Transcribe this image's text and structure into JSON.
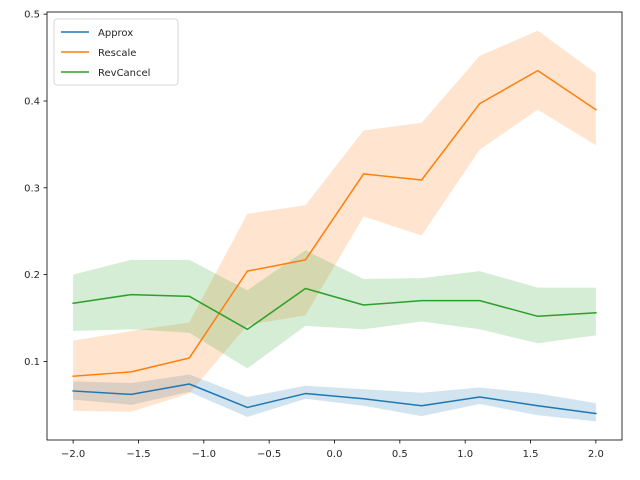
{
  "chart_data": {
    "type": "line",
    "x": [
      -2.0,
      -1.5556,
      -1.1111,
      -0.6667,
      -0.2222,
      0.2222,
      0.6667,
      1.1111,
      1.5556,
      2.0
    ],
    "xlim": [
      -2.2,
      2.2
    ],
    "ylim": [
      0.0095,
      0.5025
    ],
    "xticks": [
      -2.0,
      -1.5,
      -1.0,
      -0.5,
      0.0,
      0.5,
      1.0,
      1.5,
      2.0
    ],
    "xtick_labels": [
      "−2.0",
      "−1.5",
      "−1.0",
      "−0.5",
      "0.0",
      "0.5",
      "1.0",
      "1.5",
      "2.0"
    ],
    "yticks": [
      0.1,
      0.2,
      0.3,
      0.4,
      0.5
    ],
    "ytick_labels": [
      "0.1",
      "0.2",
      "0.3",
      "0.4",
      "0.5"
    ],
    "grid": false,
    "legend_position": "top-left",
    "series": [
      {
        "name": "Approx",
        "color": "#1f77b4",
        "values": [
          0.066,
          0.062,
          0.074,
          0.047,
          0.063,
          0.057,
          0.049,
          0.059,
          0.049,
          0.04
        ],
        "lower": [
          0.056,
          0.05,
          0.065,
          0.036,
          0.057,
          0.049,
          0.037,
          0.051,
          0.038,
          0.031
        ],
        "upper": [
          0.077,
          0.075,
          0.085,
          0.059,
          0.072,
          0.068,
          0.064,
          0.07,
          0.063,
          0.052
        ]
      },
      {
        "name": "Rescale",
        "color": "#ff7f0e",
        "values": [
          0.083,
          0.088,
          0.104,
          0.204,
          0.217,
          0.316,
          0.309,
          0.397,
          0.435,
          0.39
        ],
        "lower": [
          0.043,
          0.042,
          0.063,
          0.142,
          0.153,
          0.267,
          0.245,
          0.344,
          0.39,
          0.349
        ],
        "upper": [
          0.124,
          0.135,
          0.145,
          0.27,
          0.28,
          0.366,
          0.375,
          0.452,
          0.481,
          0.432
        ]
      },
      {
        "name": "RevCancel",
        "color": "#2ca02c",
        "values": [
          0.167,
          0.177,
          0.175,
          0.137,
          0.184,
          0.165,
          0.17,
          0.17,
          0.152,
          0.156
        ],
        "lower": [
          0.135,
          0.137,
          0.133,
          0.092,
          0.141,
          0.137,
          0.146,
          0.137,
          0.121,
          0.13
        ],
        "upper": [
          0.2,
          0.217,
          0.217,
          0.182,
          0.228,
          0.195,
          0.196,
          0.204,
          0.185,
          0.185
        ]
      }
    ]
  }
}
